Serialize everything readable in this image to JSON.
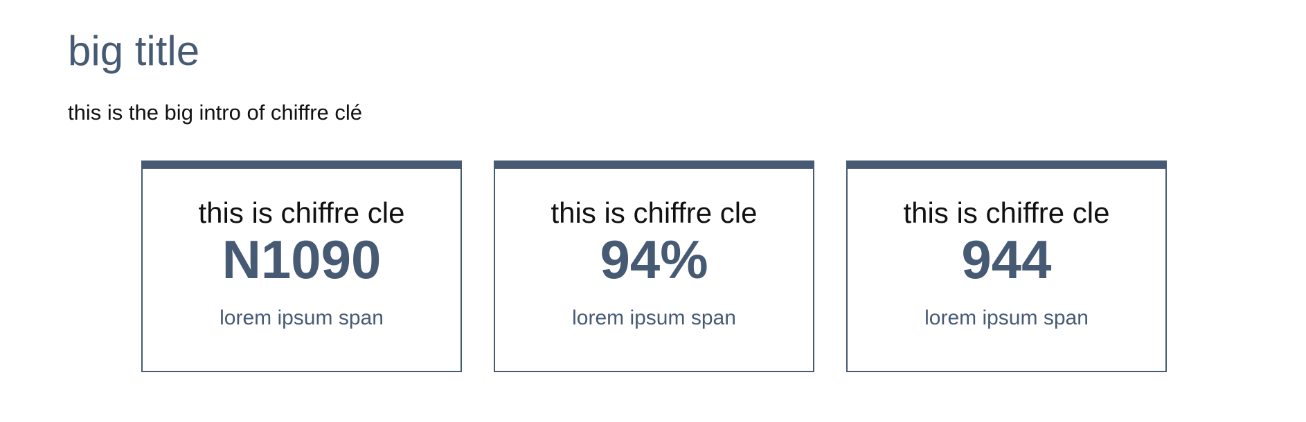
{
  "header": {
    "title": "big title",
    "intro": "this is the big intro of chiffre clé"
  },
  "cards": [
    {
      "label": "this is chiffre cle",
      "value": "N1090",
      "caption": "lorem ipsum span"
    },
    {
      "label": "this is chiffre cle",
      "value": "94%",
      "caption": "lorem ipsum span"
    },
    {
      "label": "this is chiffre cle",
      "value": "944",
      "caption": "lorem ipsum span"
    }
  ],
  "colors": {
    "accent": "#475a74",
    "text": "#111111",
    "background": "#ffffff"
  }
}
